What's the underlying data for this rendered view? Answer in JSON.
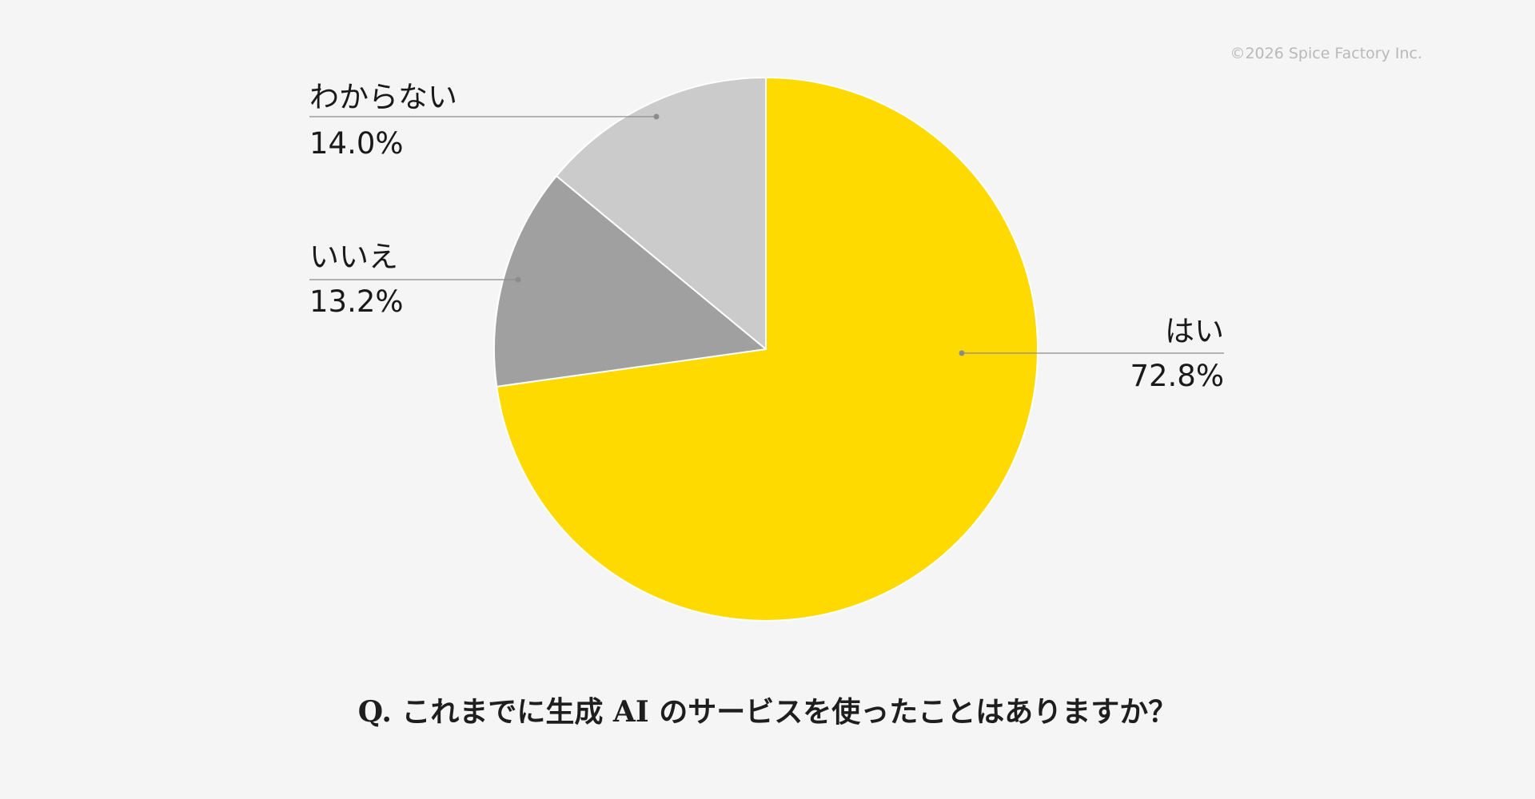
{
  "copyright": "©2026 Spice Factory Inc.",
  "question": "Q. これまでに生成 AI のサービスを使ったことはありますか？",
  "chart_data": {
    "type": "pie",
    "title": "Q. これまでに生成 AI のサービスを使ったことはありますか？",
    "start": "12 o'clock, clockwise",
    "slices": [
      {
        "label": "はい",
        "value": 72.8,
        "value_label": "72.8%",
        "color": "#ffda00"
      },
      {
        "label": "いいえ",
        "value": 13.2,
        "value_label": "13.2%",
        "color": "#a0a0a0"
      },
      {
        "label": "わからない",
        "value": 14.0,
        "value_label": "14.0%",
        "color": "#cbcbcb"
      }
    ],
    "leader_line_color": "#8c8c8c",
    "slice_border_color": "#ffffff"
  }
}
